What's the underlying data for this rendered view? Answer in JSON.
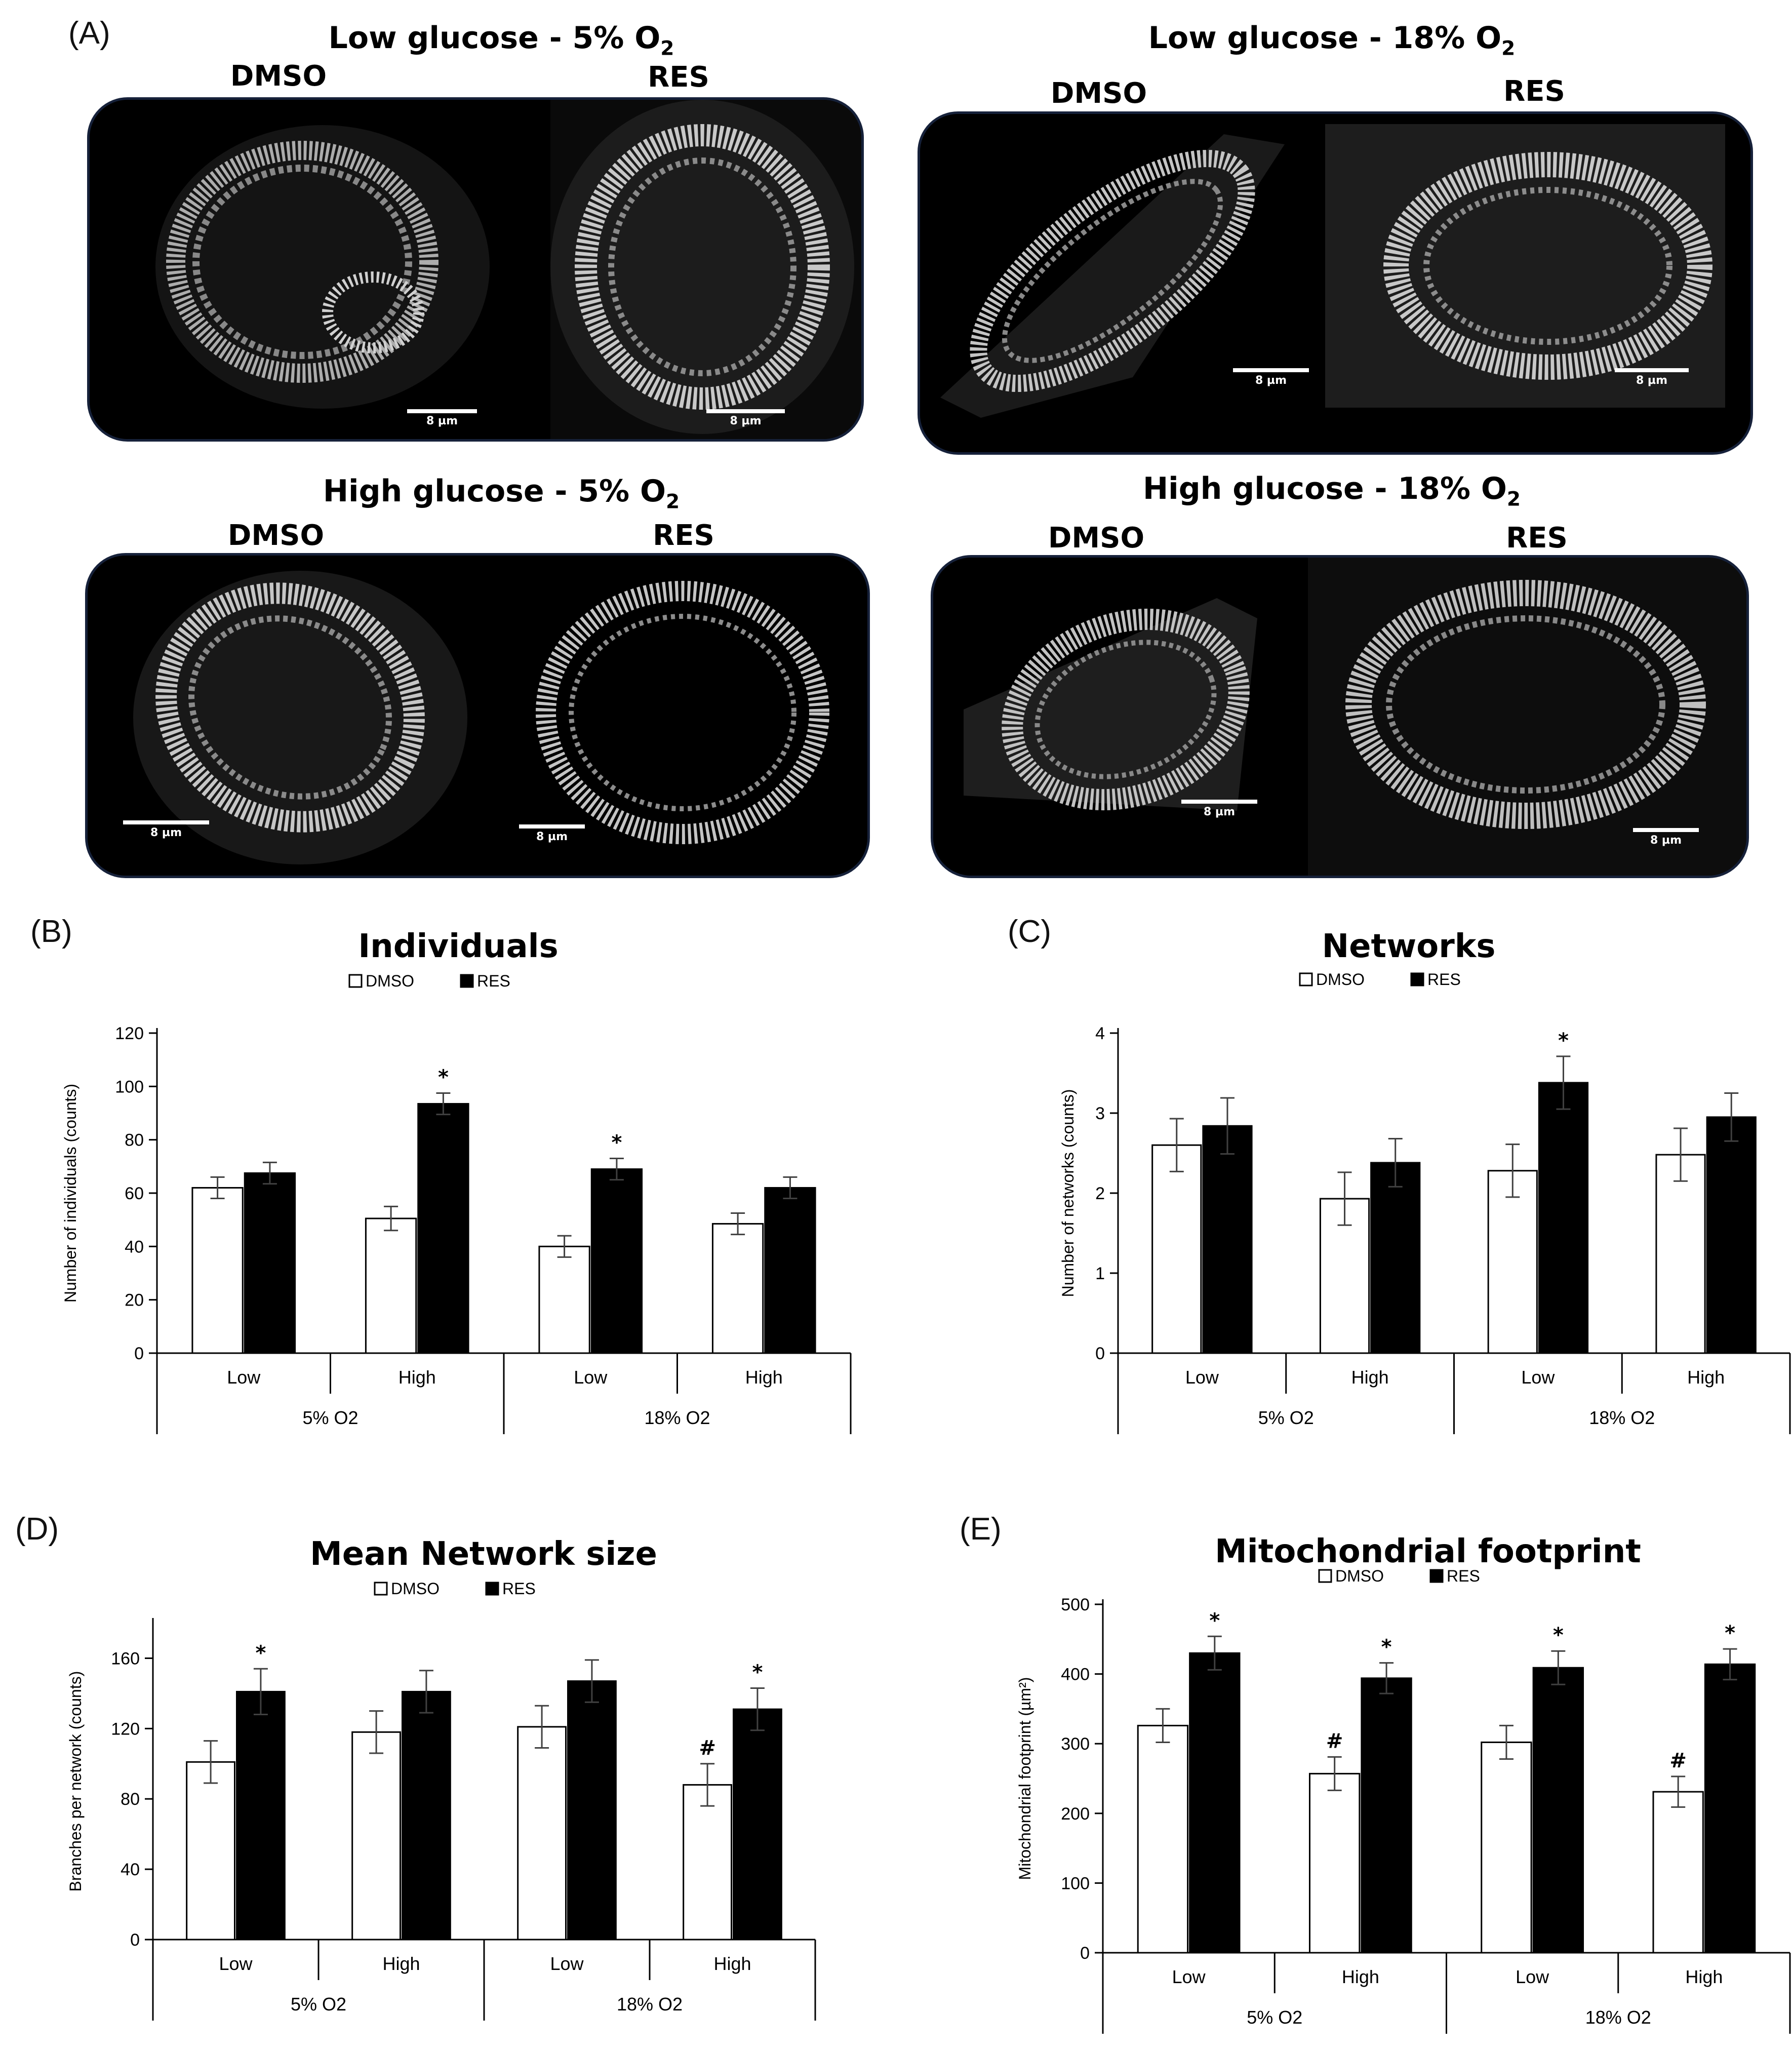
{
  "panel_a": {
    "letter": "(A)",
    "groups": [
      {
        "title_main": "Low glucose - 5% O",
        "title_sub": "2",
        "treatments": [
          "DMSO",
          "RES"
        ],
        "scale_labels": [
          "8 µm",
          "8 µm"
        ]
      },
      {
        "title_main": "Low glucose - 18% O",
        "title_sub": "2",
        "treatments": [
          "DMSO",
          "RES"
        ],
        "scale_labels": [
          "8 µm",
          "8 µm"
        ]
      },
      {
        "title_main": "High glucose - 5% O",
        "title_sub": "2",
        "treatments": [
          "DMSO",
          "RES"
        ],
        "scale_labels": [
          "8 µm",
          "8 µm"
        ]
      },
      {
        "title_main": "High glucose - 18% O",
        "title_sub": "2",
        "treatments": [
          "DMSO",
          "RES"
        ],
        "scale_labels": [
          "8 µm",
          "8 µm"
        ]
      }
    ]
  },
  "colors": {
    "dmso": "#ffffff",
    "res": "#000000",
    "axis": "#000000",
    "error": "#404040",
    "microscopy_bg": "#000000",
    "frame": "#16213a"
  },
  "chart_data": [
    {
      "panel": "(B)",
      "type": "bar",
      "title": "Individuals",
      "legend": [
        "DMSO",
        "RES"
      ],
      "legend_position": "top-center",
      "ylabel": "Number of individuals (counts)",
      "ylim": [
        0,
        120
      ],
      "yticks": [
        "0",
        "20",
        "40",
        "60",
        "80",
        "100",
        "120"
      ],
      "categories": [
        "Low",
        "High",
        "Low",
        "High"
      ],
      "groups": [
        "5% O2",
        "18% O2"
      ],
      "series": [
        {
          "name": "DMSO",
          "values": [
            62,
            50.5,
            40,
            48.5
          ],
          "errors": [
            4,
            4.5,
            4,
            4
          ]
        },
        {
          "name": "RES",
          "values": [
            67.5,
            93.5,
            69,
            62
          ],
          "errors": [
            4,
            4,
            4,
            4
          ]
        }
      ],
      "annotations": [
        {
          "category": 1,
          "series": 1,
          "text": "*"
        },
        {
          "category": 2,
          "series": 1,
          "text": "*"
        }
      ]
    },
    {
      "panel": "(C)",
      "type": "bar",
      "title": "Networks",
      "legend": [
        "DMSO",
        "RES"
      ],
      "legend_position": "top-center",
      "ylabel": "Number of networks (counts)",
      "ylim": [
        0,
        4
      ],
      "yticks": [
        "0",
        "1",
        "2",
        "3",
        "4"
      ],
      "categories": [
        "Low",
        "High",
        "Low",
        "High"
      ],
      "groups": [
        "5% O2",
        "18% O2"
      ],
      "series": [
        {
          "name": "DMSO",
          "values": [
            2.6,
            1.93,
            2.28,
            2.48
          ],
          "errors": [
            0.33,
            0.33,
            0.33,
            0.33
          ]
        },
        {
          "name": "RES",
          "values": [
            2.84,
            2.38,
            3.38,
            2.95
          ],
          "errors": [
            0.35,
            0.3,
            0.33,
            0.3
          ]
        }
      ],
      "annotations": [
        {
          "category": 2,
          "series": 1,
          "text": "*"
        }
      ]
    },
    {
      "panel": "(D)",
      "type": "bar",
      "title": "Mean Network size",
      "legend": [
        "DMSO",
        "RES"
      ],
      "legend_position": "top-center",
      "ylabel": "Branches per network (counts)",
      "ylim": [
        0,
        180
      ],
      "yticks": [
        "0",
        "40",
        "80",
        "120",
        "160"
      ],
      "categories": [
        "Low",
        "High",
        "Low",
        "High"
      ],
      "groups": [
        "5% O2",
        "18% O2"
      ],
      "series": [
        {
          "name": "DMSO",
          "values": [
            101,
            118,
            121,
            88
          ],
          "errors": [
            12,
            12,
            12,
            12
          ]
        },
        {
          "name": "RES",
          "values": [
            141,
            141,
            147,
            131
          ],
          "errors": [
            13,
            12,
            12,
            12
          ]
        }
      ],
      "annotations": [
        {
          "category": 0,
          "series": 1,
          "text": "*"
        },
        {
          "category": 3,
          "series": 0,
          "text": "#"
        },
        {
          "category": 3,
          "series": 1,
          "text": "*"
        }
      ]
    },
    {
      "panel": "(E)",
      "type": "bar",
      "title": "Mitochondrial footprint",
      "legend": [
        "DMSO",
        "RES"
      ],
      "legend_position": "top-center",
      "ylabel": "Mitochondrial footprint (µm²)",
      "ylim": [
        0,
        500
      ],
      "yticks": [
        "0",
        "100",
        "200",
        "300",
        "400",
        "500"
      ],
      "categories": [
        "Low",
        "High",
        "Low",
        "High"
      ],
      "groups": [
        "5% O2",
        "18% O2"
      ],
      "series": [
        {
          "name": "DMSO",
          "values": [
            326,
            257,
            302,
            231
          ],
          "errors": [
            24,
            24,
            24,
            22
          ]
        },
        {
          "name": "RES",
          "values": [
            430,
            394,
            409,
            414
          ],
          "errors": [
            24,
            22,
            24,
            22
          ]
        }
      ],
      "annotations": [
        {
          "category": 0,
          "series": 1,
          "text": "*"
        },
        {
          "category": 1,
          "series": 0,
          "text": "#"
        },
        {
          "category": 1,
          "series": 1,
          "text": "*"
        },
        {
          "category": 2,
          "series": 1,
          "text": "*"
        },
        {
          "category": 3,
          "series": 0,
          "text": "#"
        },
        {
          "category": 3,
          "series": 1,
          "text": "*"
        }
      ]
    }
  ]
}
